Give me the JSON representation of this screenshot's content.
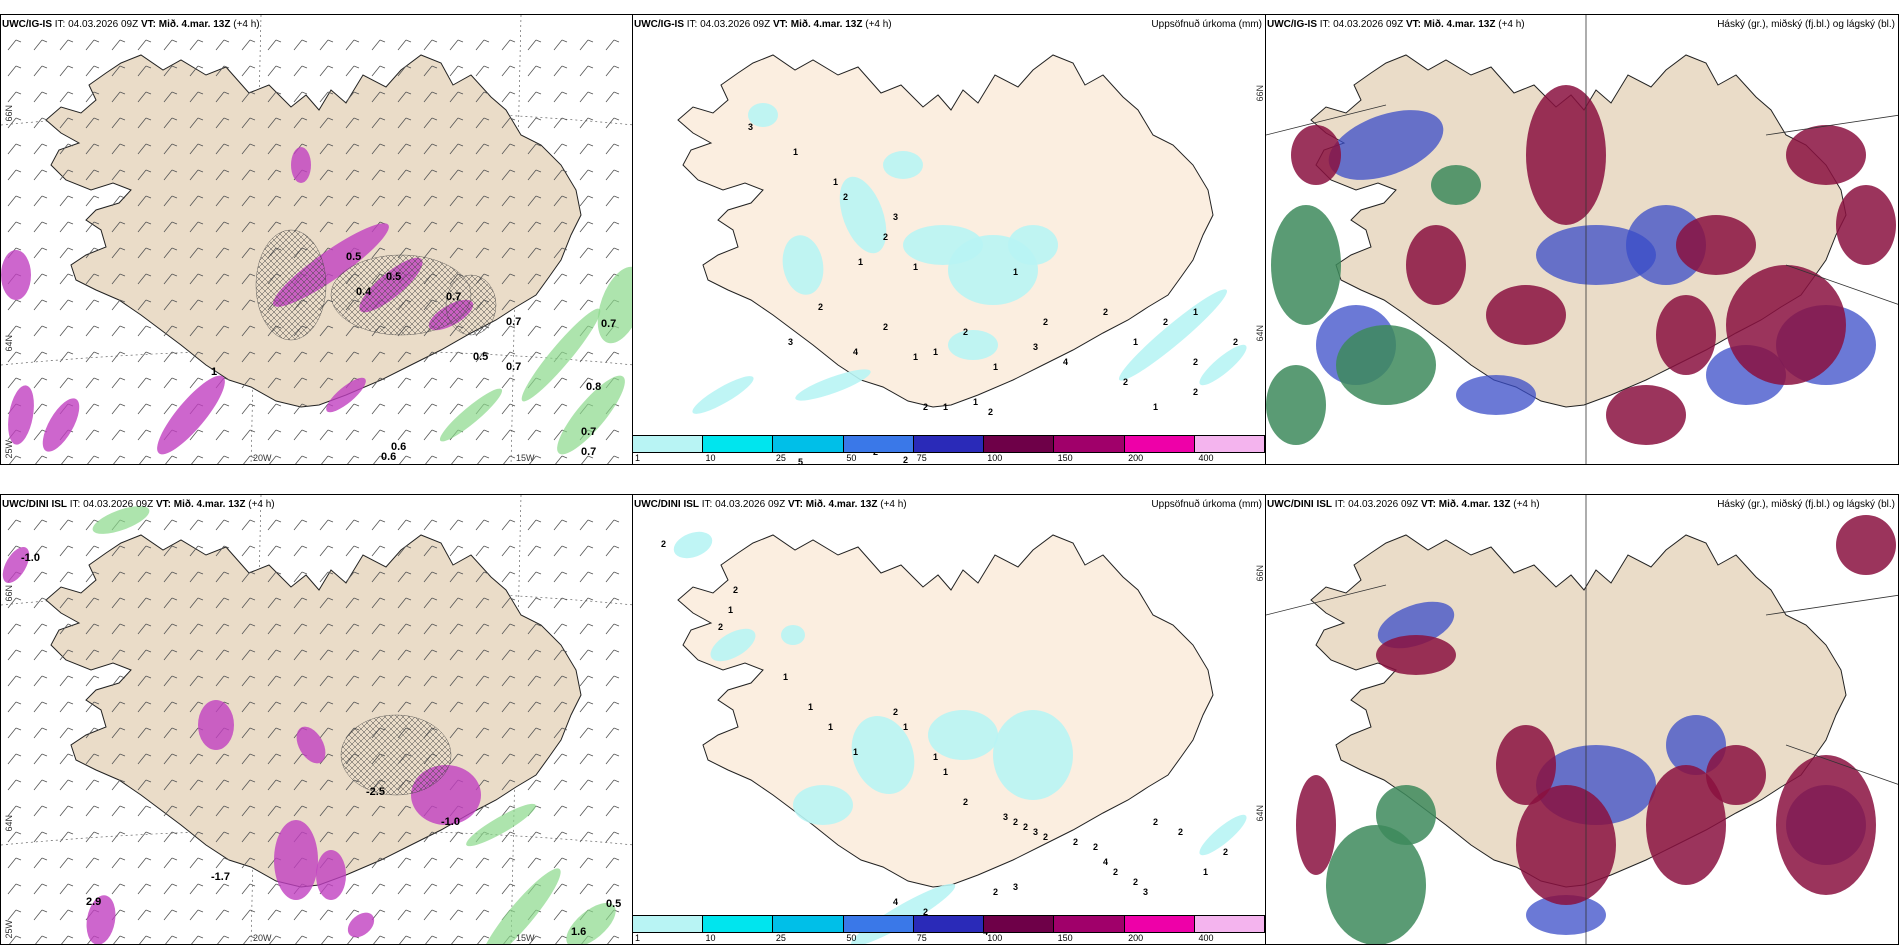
{
  "panels": [
    {
      "model": "UWC/IG-IS",
      "it_label": "IT:",
      "it_value": "04.03.2026 09Z",
      "vt_label": "VT:",
      "vt_value": "Mið. 4.mar. 13Z",
      "lead": "(+4 h)",
      "field": "",
      "type": "temp",
      "labels": [
        "0.5",
        "0.7",
        "0.7",
        "0.6",
        "0.7",
        "0.8",
        "0.7",
        "0.6",
        "0.7",
        "1",
        "0.5",
        "0.4",
        "0.5",
        "0.7"
      ],
      "axis": [
        "66N",
        "64N",
        "25W",
        "20W",
        "15W"
      ]
    },
    {
      "model": "UWC/IG-IS",
      "it_label": "IT:",
      "it_value": "04.03.2026 09Z",
      "vt_label": "VT:",
      "vt_value": "Mið. 4.mar. 13Z",
      "lead": "(+4 h)",
      "field": "Uppsöfnuð úrkoma (mm)",
      "type": "precip",
      "labels": [
        "3",
        "1",
        "1",
        "2",
        "2",
        "1",
        "3",
        "1",
        "2",
        "3",
        "4",
        "2",
        "1",
        "1",
        "2",
        "1",
        "2",
        "1",
        "1",
        "2",
        "1",
        "2",
        "3",
        "4",
        "2",
        "1",
        "2",
        "2",
        "1",
        "5",
        "2",
        "2",
        "2",
        "1",
        "1",
        "2",
        "2",
        "2"
      ],
      "axis": [
        "66N",
        "64N"
      ]
    },
    {
      "model": "UWC/IG-IS",
      "it_label": "IT:",
      "it_value": "04.03.2026 09Z",
      "vt_label": "VT:",
      "vt_value": "Mið. 4.mar. 13Z",
      "lead": "(+4 h)",
      "field": "Háský (gr.), miðský (fj.bl.) og lágský (bl.)",
      "type": "cloud",
      "labels": [],
      "axis": []
    },
    {
      "model": "UWC/DINI ISL",
      "it_label": "IT:",
      "it_value": "04.03.2026 09Z",
      "vt_label": "VT:",
      "vt_value": "Mið. 4.mar. 13Z",
      "lead": "(+4 h)",
      "field": "",
      "type": "temp",
      "labels": [
        "-1.0",
        "-2.5",
        "-1.7",
        "2.9",
        "0.5",
        "1.6",
        "-1.0"
      ],
      "axis": [
        "66N",
        "64N",
        "25W",
        "20W",
        "15W"
      ]
    },
    {
      "model": "UWC/DINI ISL",
      "it_label": "IT:",
      "it_value": "04.03.2026 09Z",
      "vt_label": "VT:",
      "vt_value": "Mið. 4.mar. 13Z",
      "lead": "(+4 h)",
      "field": "Uppsöfnuð úrkoma (mm)",
      "type": "precip",
      "labels": [
        "2",
        "2",
        "1",
        "2",
        "1",
        "1",
        "1",
        "1",
        "2",
        "1",
        "1",
        "1",
        "2",
        "3",
        "2",
        "2",
        "3",
        "2",
        "2",
        "2",
        "4",
        "2",
        "2",
        "3",
        "2",
        "3",
        "4",
        "2",
        "2",
        "4",
        "2",
        "1",
        "2",
        "2"
      ],
      "axis": [
        "66N",
        "64N"
      ]
    },
    {
      "model": "UWC/DINI ISL",
      "it_label": "IT:",
      "it_value": "04.03.2026 09Z",
      "vt_label": "VT:",
      "vt_value": "Mið. 4.mar. 13Z",
      "lead": "(+4 h)",
      "field": "Háský (gr.), miðský (fj.bl.) og lágský (bl.)",
      "type": "cloud",
      "labels": [],
      "axis": []
    }
  ],
  "colorbar": {
    "ticks": [
      "1",
      "10",
      "25",
      "50",
      "75",
      "100",
      "150",
      "200",
      "400"
    ],
    "colors": [
      "#b8f4f4",
      "#00e5ee",
      "#00bfe8",
      "#3a78e8",
      "#2a2ab8",
      "#6e0048",
      "#a0006a",
      "#ee00a8",
      "#f4b4ee"
    ]
  },
  "colors": {
    "land_temp": "#eadcc8",
    "land_precip": "#fbeee0",
    "precip_light": "#b8f4f4",
    "snow_magenta": "#c040c0",
    "rain_green": "#8ad88a",
    "cloud_high": "#3d8a5c",
    "cloud_mid": "#8a1040",
    "cloud_low": "#3a4cc8"
  }
}
